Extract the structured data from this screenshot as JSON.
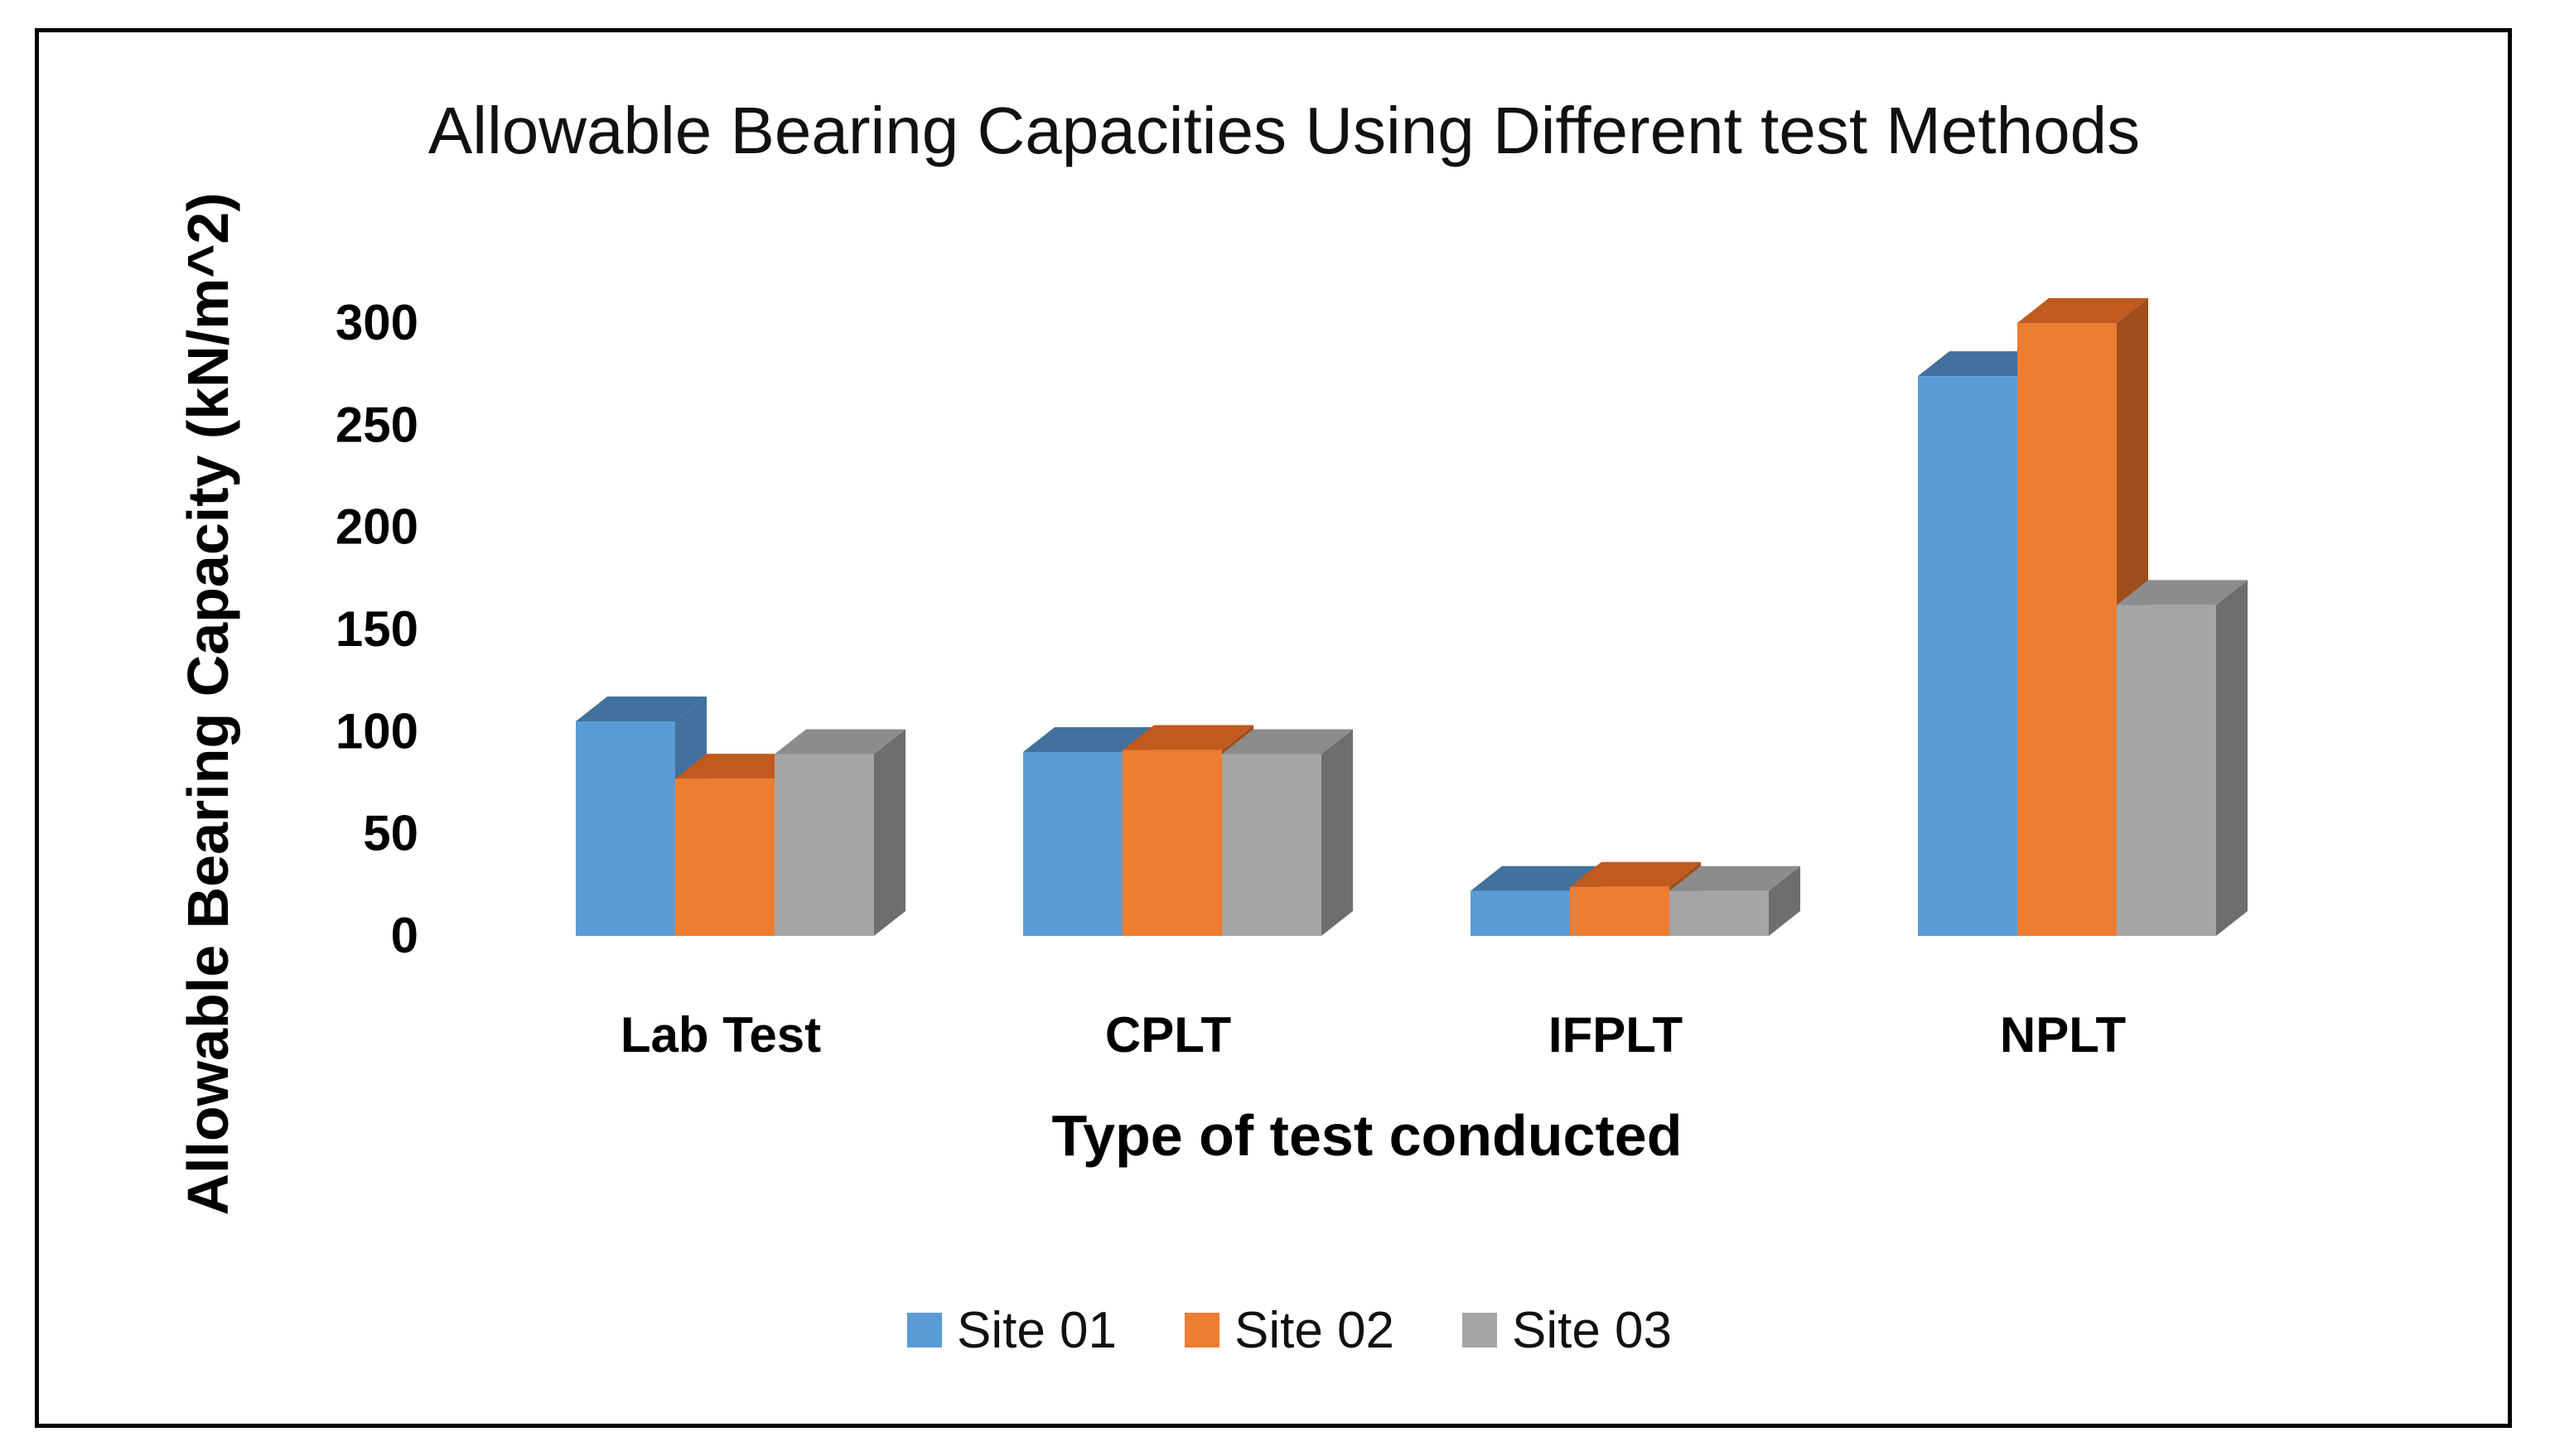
{
  "chart_data": {
    "type": "bar",
    "style": "3d-clustered-column",
    "title": "Allowable Bearing Capacities Using Different test Methods",
    "xlabel": "Type of test conducted",
    "ylabel": "Allowable Bearing Capacity (kN/m^2)",
    "categories": [
      "Lab Test",
      "CPLT",
      "IFPLT",
      "NPLT"
    ],
    "series": [
      {
        "name": "Site 01",
        "color": "#5B9BD5",
        "side": "#41719C",
        "top": "#41719C",
        "values": [
          105,
          90,
          22,
          274
        ]
      },
      {
        "name": "Site 02",
        "color": "#ED7D31",
        "side": "#9E4F1C",
        "top": "#C05A1E",
        "values": [
          77,
          91,
          24,
          300
        ]
      },
      {
        "name": "Site 03",
        "color": "#A5A5A5",
        "side": "#6E6E6E",
        "top": "#8C8C8C",
        "values": [
          89,
          89,
          22,
          162
        ]
      }
    ],
    "yticks": [
      "0",
      "50",
      "100",
      "150",
      "200",
      "250",
      "300"
    ],
    "ylim": [
      0,
      300
    ],
    "grid": false,
    "legend_position": "bottom"
  }
}
